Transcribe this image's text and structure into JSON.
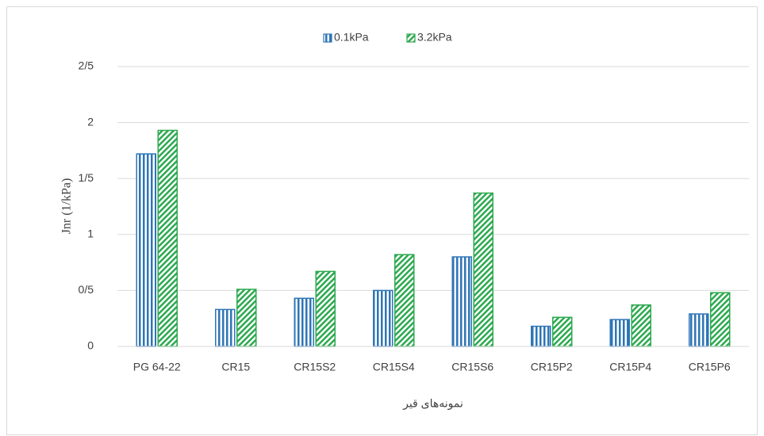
{
  "chart_data": {
    "type": "bar",
    "x_label": "نمونه‌های قیر",
    "y_label": "Jnr (1/kPa)",
    "categories": [
      "PG 64-22",
      "CR15",
      "CR15S2",
      "CR15S4",
      "CR15S6",
      "CR15P2",
      "CR15P4",
      "CR15P6"
    ],
    "series": [
      {
        "name": "0.1kPa",
        "color": "#2e75b6",
        "pattern": "vertical",
        "values": [
          1.72,
          0.33,
          0.43,
          0.5,
          0.8,
          0.18,
          0.24,
          0.29
        ]
      },
      {
        "name": "3.2kPa",
        "color": "#2ca94f",
        "pattern": "diagonal",
        "values": [
          1.93,
          0.51,
          0.67,
          0.82,
          1.37,
          0.26,
          0.37,
          0.48
        ]
      }
    ],
    "ylim": [
      0,
      2.5
    ],
    "yticks": [
      0,
      {
        "value": 0.5,
        "label": "0/5"
      },
      1,
      {
        "value": 1.5,
        "label": "1/5"
      },
      2,
      {
        "value": 2.5,
        "label": "2/5"
      }
    ],
    "grid": true,
    "legend": "top"
  }
}
